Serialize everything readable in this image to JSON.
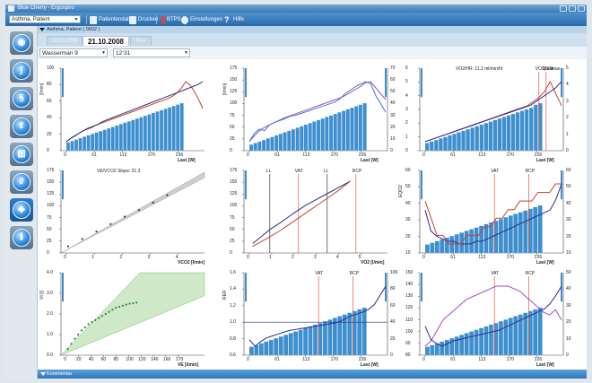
{
  "window": {
    "title": "Blue Cherry - Ergospiro"
  },
  "toolbar": {
    "patient_value": "Asthma, Patient",
    "buttons": [
      {
        "label": "Patientendaten",
        "icon": "patient-data-icon"
      },
      {
        "label": "Drucken",
        "icon": "printer-icon"
      },
      {
        "label": "BTPS",
        "icon": "thermometer-icon"
      },
      {
        "label": "Einstellungen",
        "icon": "settings-icon"
      },
      {
        "label": "Hilfe",
        "icon": "help-icon"
      }
    ]
  },
  "nav": {
    "items": [
      {
        "icon": "patient-icon",
        "glyph": "◉"
      },
      {
        "icon": "spirometry-icon",
        "glyph": "∫"
      },
      {
        "icon": "lung-icon",
        "glyph": "§"
      },
      {
        "icon": "ecg-icon",
        "glyph": "ℓ"
      },
      {
        "icon": "ergometer-icon",
        "glyph": "▥"
      },
      {
        "icon": "cpet-icon",
        "glyph": "∂"
      },
      {
        "icon": "analysis-icon",
        "glyph": "◈"
      },
      {
        "icon": "info-icon",
        "glyph": "ℹ"
      }
    ],
    "active_index": 6
  },
  "patient_header": {
    "text": "Asthma, Patient ( 0002 )"
  },
  "tabs": [
    "12.10.2005",
    "21.10.2008",
    "Neu"
  ],
  "active_tab": 1,
  "selectors": {
    "protocol": "Wasserman 9",
    "time": "12:31"
  },
  "bottom_bar": {
    "label": "Kommentar"
  },
  "colors": {
    "bars": "#3f8fcf",
    "red": "#c8402e",
    "navy": "#2a2d8c",
    "green": "#2e8a2e",
    "purple": "#a34ac9",
    "blue_line": "#3a7cc8",
    "marker": "#e05a4a"
  },
  "chart_data": [
    {
      "type": "bar",
      "panel": "1",
      "xlabel": "Last [W]",
      "ylabel": "[l/min]",
      "x_ticks": [
        "0",
        "61",
        "113",
        "170",
        "226"
      ],
      "y_left_ticks": [
        "0",
        "20",
        "40",
        "60",
        "80",
        "100"
      ],
      "xlim": [
        0,
        280
      ],
      "ylim": [
        0,
        100
      ],
      "series": [
        {
          "name": "bars",
          "values": [
            12,
            14,
            16,
            18,
            20,
            22,
            24,
            26,
            28,
            30,
            32,
            34,
            36,
            38,
            40,
            42,
            44,
            46,
            48,
            50,
            52,
            54,
            56,
            58,
            60,
            62,
            64,
            66,
            68
          ]
        },
        {
          "name": "red",
          "values": [
            8,
            12,
            15,
            19,
            22,
            24,
            26,
            29,
            31,
            33,
            35,
            37,
            39,
            41,
            43,
            45,
            47,
            49,
            51,
            53,
            55,
            57,
            59,
            61,
            63,
            66,
            70,
            76,
            84,
            80,
            72,
            62,
            50
          ]
        },
        {
          "name": "navy",
          "values": [
            6,
            10,
            13,
            16,
            19,
            21,
            23,
            26,
            28,
            30,
            32,
            34,
            36,
            38,
            40,
            42,
            44,
            46,
            48,
            50,
            52,
            54,
            56,
            58,
            60,
            62,
            65
          ]
        }
      ]
    },
    {
      "type": "line",
      "panel": "2",
      "xlabel": "Last [W]",
      "ylabel": "[l/min]",
      "y2label": "[bpm/min]",
      "x_ticks": [
        "0",
        "61",
        "113",
        "170",
        "226"
      ],
      "y_left_ticks": [
        "0",
        "25",
        "50",
        "75",
        "100",
        "125",
        "150",
        "175"
      ],
      "y_right_ticks": [
        "0",
        "10",
        "20",
        "30",
        "40",
        "50",
        "60",
        "70"
      ],
      "series": [
        {
          "name": "bars",
          "values": [
            8,
            10,
            12,
            14,
            16,
            18,
            20,
            22,
            24,
            26,
            28,
            30,
            32,
            34,
            36,
            38,
            40,
            42,
            44,
            46,
            48,
            50,
            52,
            54,
            56,
            58,
            60,
            62
          ]
        },
        {
          "name": "purple",
          "values": [
            70,
            80,
            88,
            94,
            98,
            102,
            106,
            110,
            113,
            116,
            119,
            122,
            125,
            128,
            131,
            134,
            137,
            140,
            143,
            147,
            152,
            157,
            162,
            168,
            170,
            160,
            150,
            140
          ]
        },
        {
          "name": "blue",
          "values": [
            35,
            45,
            50,
            48,
            55,
            58,
            60,
            62,
            65,
            66,
            68,
            70,
            72,
            74,
            76,
            78,
            80,
            82,
            86,
            92,
            96,
            100,
            103,
            106,
            104,
            90,
            80,
            70
          ]
        }
      ]
    },
    {
      "type": "line",
      "panel": "3",
      "title": "VO2/HR: 11.2 ml/min/hf",
      "xlabel": "Last [W]",
      "x_ticks": [
        "0",
        "61",
        "113",
        "170",
        "226"
      ],
      "y_left_ticks": [
        "0",
        "1",
        "2",
        "3",
        "4",
        "5",
        "6"
      ],
      "y_right_ticks": [
        "0",
        "1",
        "2",
        "3",
        "4",
        "5"
      ],
      "markers": [
        "VO2peak",
        "VO2max"
      ],
      "series": [
        {
          "name": "bars",
          "values": [
            10,
            12,
            14,
            16,
            18,
            20,
            22,
            24,
            26,
            28,
            30,
            32,
            34,
            36,
            38,
            40,
            42,
            44,
            46,
            48,
            50,
            52,
            54,
            56,
            60,
            62
          ]
        },
        {
          "name": "red",
          "values": [
            1.0,
            1.1,
            1.2,
            1.3,
            1.4,
            1.5,
            1.6,
            1.7,
            1.8,
            1.9,
            2.0,
            2.1,
            2.2,
            2.3,
            2.4,
            2.5,
            2.6,
            2.7,
            2.8,
            3.0,
            3.2,
            3.5,
            4.0,
            3.4,
            2.8
          ]
        },
        {
          "name": "navy",
          "values": [
            0.8,
            0.9,
            1.0,
            1.1,
            1.2,
            1.3,
            1.4,
            1.5,
            1.6,
            1.7,
            1.8,
            1.9,
            2.0,
            2.1,
            2.2,
            2.3,
            2.4,
            2.5,
            2.7,
            2.9,
            3.1,
            3.3,
            3.6
          ]
        }
      ]
    },
    {
      "type": "scatter",
      "panel": "4",
      "title": "VE/VCO2 Slope: 21.3",
      "xlabel": "VCO2 [l/min]",
      "x_ticks": [
        "0",
        "1",
        "2",
        "3",
        "4"
      ],
      "y_left_ticks": [
        "0",
        "25",
        "50",
        "75",
        "100",
        "125",
        "150",
        "175"
      ],
      "series": [
        {
          "name": "dark-red",
          "x": [
            0.2,
            0.6,
            1.0,
            1.4,
            1.8,
            2.2,
            2.6,
            3.0
          ],
          "y": [
            8,
            17,
            26,
            35,
            44,
            52,
            61,
            70
          ]
        }
      ]
    },
    {
      "type": "line",
      "panel": "5",
      "xlabel": "VO2 [l/min]",
      "x_ticks": [
        "0",
        "1",
        "2",
        "3",
        "4",
        "5"
      ],
      "y_left_ticks": [
        "0",
        "25",
        "50",
        "75",
        "100",
        "125",
        "150",
        "175"
      ],
      "markers": [
        "LL",
        "VAT",
        "LL",
        "RCP"
      ],
      "series": [
        {
          "name": "navy",
          "x": [
            0.3,
            0.6,
            0.9,
            1.2,
            1.5,
            1.8,
            2.1,
            2.4,
            2.7,
            3.0,
            3.3,
            3.6
          ],
          "y": [
            20,
            35,
            50,
            62,
            75,
            88,
            100,
            110,
            120,
            130,
            140,
            150
          ]
        },
        {
          "name": "red",
          "x": [
            0.3,
            0.8,
            1.3,
            1.8,
            2.3,
            2.8,
            3.3,
            3.8
          ],
          "y": [
            10,
            22,
            35,
            50,
            65,
            80,
            95,
            112
          ]
        }
      ]
    },
    {
      "type": "line",
      "panel": "6",
      "xlabel": "Last [W]",
      "ylabel": "EQO2",
      "x_ticks": [
        "0",
        "61",
        "113",
        "170",
        "226"
      ],
      "y_left_ticks": [
        "10",
        "20",
        "30",
        "40",
        "50",
        "60"
      ],
      "y_right_ticks": [
        "10",
        "20",
        "30",
        "40",
        "50",
        "60"
      ],
      "markers": [
        "VAT",
        "RCP"
      ],
      "series": [
        {
          "name": "bars",
          "values": [
            5,
            6,
            7,
            8,
            9,
            10,
            11,
            12,
            13,
            14,
            15,
            16,
            17,
            18,
            19,
            20,
            21,
            22,
            23,
            24,
            25,
            26,
            27,
            28
          ]
        },
        {
          "name": "navy",
          "values": [
            38,
            30,
            28,
            27,
            26,
            26,
            25,
            25,
            25,
            26,
            26,
            27,
            28,
            29,
            30,
            31,
            32,
            33,
            34,
            35,
            36,
            37,
            38,
            42,
            48
          ]
        },
        {
          "name": "red",
          "values": [
            34,
            32,
            30,
            30,
            29,
            29,
            29,
            30,
            30,
            30,
            31,
            31,
            32,
            32,
            33,
            33,
            34,
            34,
            34,
            35,
            35,
            35,
            36,
            36
          ]
        }
      ]
    },
    {
      "type": "scatter",
      "panel": "7",
      "xlabel": "VE [l/min]",
      "ylabel": "Vt [l]",
      "x_ticks": [
        "0",
        "20",
        "40",
        "60",
        "80",
        "100",
        "120",
        "140",
        "160",
        "170"
      ],
      "y_left_ticks": [
        "0.0",
        "1.0",
        "2.0",
        "3.0",
        "4.0"
      ],
      "series": [
        {
          "name": "green",
          "x": [
            8,
            12,
            16,
            20,
            24,
            28,
            32,
            36,
            40,
            44,
            48,
            52,
            56,
            60,
            64,
            68,
            72,
            76,
            80,
            84,
            88
          ],
          "y": [
            0.3,
            0.55,
            0.8,
            1.0,
            1.2,
            1.35,
            1.5,
            1.6,
            1.7,
            1.8,
            1.9,
            2.0,
            2.1,
            2.2,
            2.3,
            2.35,
            2.4,
            2.45,
            2.5,
            2.52,
            2.55
          ]
        }
      ]
    },
    {
      "type": "line",
      "panel": "8",
      "xlabel": "Last [W]",
      "ylabel": "RER",
      "x_ticks": [
        "0",
        "61",
        "113",
        "170",
        "226"
      ],
      "y_left_ticks": [
        "0.6",
        "0.8",
        "1.0",
        "1.2",
        "1.4",
        "1.6"
      ],
      "y_right_ticks": [
        "0",
        "20",
        "40",
        "60",
        "80",
        "100"
      ],
      "markers": [
        "VAT",
        "RCP"
      ],
      "series": [
        {
          "name": "bars",
          "values": [
            5,
            6,
            7,
            8,
            9,
            10,
            11,
            12,
            13,
            14,
            15,
            16,
            17,
            18,
            19,
            20,
            21,
            22,
            23,
            24,
            25,
            26,
            27,
            28
          ]
        },
        {
          "name": "navy",
          "values": [
            0.82,
            0.75,
            0.8,
            0.84,
            0.86,
            0.88,
            0.9,
            0.92,
            0.93,
            0.94,
            0.95,
            0.96,
            0.97,
            0.98,
            0.99,
            1.0,
            1.02,
            1.05,
            1.08,
            1.1,
            1.12,
            1.15,
            1.2,
            1.3,
            1.4
          ]
        }
      ]
    },
    {
      "type": "line",
      "panel": "9",
      "xlabel": "Last [W]",
      "x_ticks": [
        "0",
        "61",
        "113",
        "170",
        "226"
      ],
      "y_left_ticks": [
        "80",
        "90",
        "100",
        "110",
        "120",
        "130",
        "140",
        "150"
      ],
      "y_right_ticks": [
        "0",
        "10",
        "20",
        "30",
        "40",
        "50"
      ],
      "markers": [
        "VAT",
        "RCP"
      ],
      "series": [
        {
          "name": "bars",
          "values": [
            5,
            6,
            7,
            8,
            9,
            10,
            11,
            12,
            13,
            14,
            15,
            16,
            17,
            18,
            19,
            20,
            21,
            22,
            23,
            24,
            25,
            26,
            27,
            28
          ]
        },
        {
          "name": "purple",
          "values": [
            118,
            120,
            124,
            128,
            130,
            132,
            134,
            136,
            137,
            138,
            139,
            140,
            141,
            141,
            141,
            140,
            139,
            137,
            135,
            133,
            131,
            130,
            132,
            128
          ]
        },
        {
          "name": "navy",
          "values": [
            105,
            95,
            92,
            90,
            92,
            94,
            95,
            96,
            97,
            98,
            99,
            100,
            101,
            102,
            104,
            106,
            108,
            110,
            112,
            114,
            116,
            118,
            122,
            128,
            135
          ]
        }
      ]
    }
  ]
}
